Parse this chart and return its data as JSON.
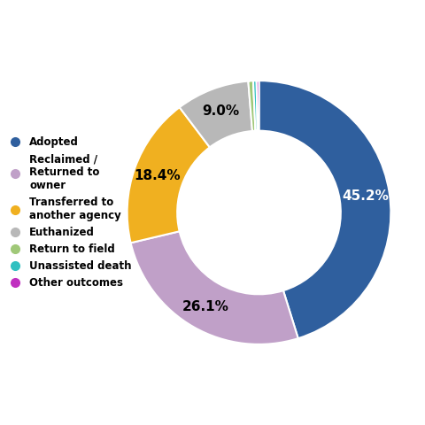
{
  "labels": [
    "Adopted",
    "Reclaimed /\nReturned to\nowner",
    "Transferred to\nanother agency",
    "Euthanized",
    "Return to field",
    "Unassisted death",
    "Other outcomes"
  ],
  "values": [
    45.2,
    26.1,
    18.4,
    9.0,
    0.6,
    0.4,
    0.3
  ],
  "colors": [
    "#2f5f9e",
    "#c0a0c8",
    "#f0b020",
    "#b8b8b8",
    "#a0c878",
    "#30c0c0",
    "#c030c0"
  ],
  "pct_labels": [
    "45.2%",
    "26.1%",
    "18.4%",
    "9.0%"
  ],
  "pct_colors": [
    "white",
    "black",
    "black",
    "black"
  ],
  "legend_labels": [
    "Adopted",
    "Reclaimed /\nReturned to\nowner",
    "Transferred to\nanother agency",
    "Euthanized",
    "Return to field",
    "Unassisted death",
    "Other outcomes"
  ],
  "background_color": "#ffffff",
  "donut_width": 0.38
}
